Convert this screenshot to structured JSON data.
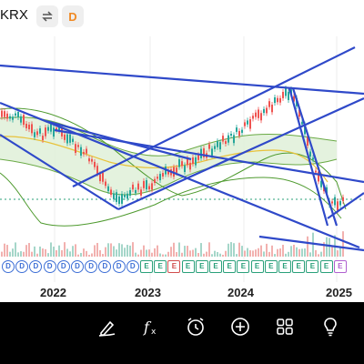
{
  "header": {
    "ticker": "KRX",
    "compare_icon": "compare-arrows-icon",
    "interval_label": "D"
  },
  "colors": {
    "up": "#26a69a",
    "down": "#ef5350",
    "trendline": "#2f49c9",
    "band_fill": "#dff0d8",
    "band_line": "#6aaa45",
    "ma_yellow": "#e8c23a",
    "dotted_line": "#2aa07a"
  },
  "axis": {
    "years": [
      "2022",
      "2023",
      "2024",
      "2025"
    ]
  },
  "events": [
    "D",
    "D",
    "D",
    "D",
    "D",
    "D",
    "D",
    "D",
    "D",
    "D",
    "E",
    "E",
    "E",
    "E",
    "E",
    "E",
    "E",
    "E",
    "E",
    "E",
    "E",
    "E",
    "E",
    "E",
    "E"
  ],
  "toolbar": {
    "items": [
      {
        "name": "draw-icon"
      },
      {
        "name": "indicator-fx-icon"
      },
      {
        "name": "alert-clock-icon"
      },
      {
        "name": "add-icon"
      },
      {
        "name": "layout-grid-icon"
      },
      {
        "name": "idea-bulb-icon"
      }
    ]
  }
}
